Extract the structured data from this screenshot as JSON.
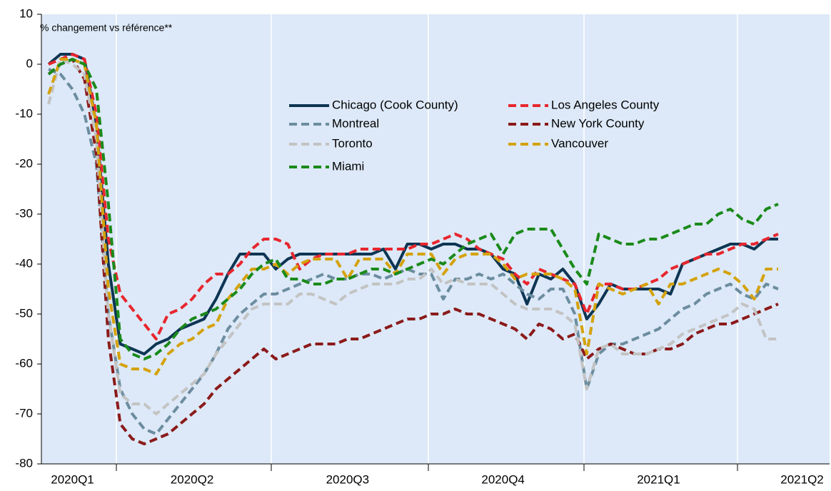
{
  "chart_data": {
    "type": "line",
    "ylabel": "% changement vs référence**",
    "categories": [
      null,
      null,
      "2020Q1",
      null,
      null,
      null,
      null,
      null,
      null,
      null,
      null,
      null,
      "2020Q2",
      null,
      null,
      null,
      null,
      null,
      null,
      null,
      null,
      null,
      null,
      null,
      null,
      "2020Q3",
      null,
      null,
      null,
      null,
      null,
      null,
      null,
      null,
      null,
      null,
      null,
      null,
      "2020Q4",
      null,
      null,
      null,
      null,
      null,
      null,
      null,
      null,
      null,
      null,
      null,
      null,
      "2021Q1",
      null,
      null,
      null,
      null,
      null,
      null,
      null,
      null,
      null,
      null,
      null,
      "2021Q2",
      null
    ],
    "series": [
      {
        "name": "Chicago (Cook County)",
        "color": "#0d3553",
        "dashed": false,
        "values": [
          0,
          2,
          2,
          1,
          -12,
          -40,
          -56,
          -57,
          -58,
          -56,
          -55,
          -53,
          -52,
          -51,
          -47,
          -42,
          -38,
          -38,
          -38,
          -41,
          -39,
          -38,
          -38,
          -38,
          -38,
          -38,
          -38,
          -38,
          -37,
          -41,
          -36,
          -36,
          -37,
          -36,
          -36,
          -37,
          -37,
          -38,
          -41,
          -42,
          -48,
          -42,
          -43,
          -41,
          -44,
          -51,
          -48,
          -44,
          -45,
          -45,
          -45,
          -45,
          -46,
          -40,
          -39,
          -38,
          -37,
          -36,
          -36,
          -37,
          -35,
          -35,
          null,
          null,
          null
        ]
      },
      {
        "name": "Los Angeles County",
        "color": "#e8262e",
        "dashed": true,
        "values": [
          0,
          1,
          2,
          1,
          -10,
          -35,
          -46,
          -49,
          -52,
          -55,
          -50,
          -49,
          -47,
          -44,
          -42,
          -42,
          -40,
          -37,
          -35,
          -35,
          -36,
          -41,
          -39,
          -38,
          -38,
          -38,
          -37,
          -37,
          -37,
          -37,
          -37,
          -36,
          -36,
          -35,
          -34,
          -35,
          -37,
          -38,
          -39,
          -42,
          -44,
          -41,
          -42,
          -43,
          -44,
          -50,
          -44,
          -44,
          -45,
          -45,
          -44,
          -43,
          -41,
          -40,
          -39,
          -38,
          -38,
          -37,
          -36,
          -36,
          -35,
          -34,
          null,
          null,
          null
        ]
      },
      {
        "name": "Montreal",
        "color": "#6c8d9f",
        "dashed": true,
        "values": [
          -1,
          -2,
          -5,
          -10,
          -20,
          -50,
          -65,
          -70,
          -73,
          -74,
          -71,
          -68,
          -65,
          -62,
          -58,
          -53,
          -50,
          -48,
          -46,
          -46,
          -45,
          -44,
          -43,
          -42,
          -43,
          -43,
          -42,
          -42,
          -43,
          -42,
          -41,
          -42,
          -42,
          -47,
          -43,
          -43,
          -42,
          -43,
          -42,
          -44,
          -46,
          -47,
          -45,
          -45,
          -50,
          -65,
          -58,
          -56,
          -56,
          -55,
          -54,
          -53,
          -51,
          -49,
          -48,
          -46,
          -45,
          -44,
          -46,
          -47,
          -44,
          -45,
          null,
          null,
          null
        ]
      },
      {
        "name": "New York County",
        "color": "#8b1a1a",
        "dashed": true,
        "values": [
          -2,
          0,
          1,
          -3,
          -18,
          -55,
          -72,
          -75,
          -76,
          -75,
          -74,
          -72,
          -70,
          -68,
          -65,
          -63,
          -61,
          -59,
          -57,
          -59,
          -58,
          -57,
          -56,
          -56,
          -56,
          -55,
          -55,
          -54,
          -53,
          -52,
          -51,
          -51,
          -50,
          -50,
          -49,
          -50,
          -50,
          -51,
          -52,
          -53,
          -55,
          -52,
          -53,
          -55,
          -54,
          -59,
          -57,
          -56,
          -57,
          -58,
          -58,
          -57,
          -57,
          -56,
          -54,
          -53,
          -52,
          -52,
          -51,
          -50,
          -49,
          -48,
          null,
          null,
          null
        ]
      },
      {
        "name": "Toronto",
        "color": "#c3c3c3",
        "dashed": true,
        "values": [
          -8,
          1,
          0,
          -2,
          -15,
          -50,
          -66,
          -68,
          -68,
          -70,
          -68,
          -66,
          -64,
          -62,
          -58,
          -55,
          -52,
          -49,
          -48,
          -48,
          -48,
          -46,
          -46,
          -47,
          -48,
          -46,
          -45,
          -44,
          -44,
          -44,
          -43,
          -43,
          -41,
          -44,
          -43,
          -44,
          -44,
          -44,
          -46,
          -48,
          -49,
          -49,
          -49,
          -50,
          -52,
          -65,
          -57,
          -56,
          -58,
          -58,
          -58,
          -57,
          -56,
          -54,
          -53,
          -52,
          -51,
          -50,
          -48,
          -49,
          -55,
          -55,
          null,
          null,
          null
        ]
      },
      {
        "name": "Vancouver",
        "color": "#d4a20c",
        "dashed": true,
        "values": [
          -6,
          1,
          1,
          0,
          -12,
          -45,
          -60,
          -61,
          -61,
          -62,
          -58,
          -56,
          -55,
          -53,
          -52,
          -47,
          -44,
          -41,
          -41,
          -40,
          -42,
          -40,
          -39,
          -39,
          -39,
          -43,
          -39,
          -39,
          -39,
          -42,
          -38,
          -38,
          -38,
          -42,
          -39,
          -38,
          -38,
          -38,
          -40,
          -43,
          -42,
          -42,
          -42,
          -43,
          -45,
          -58,
          -44,
          -45,
          -46,
          -45,
          -44,
          -48,
          -44,
          -44,
          -43,
          -42,
          -41,
          -42,
          -44,
          -47,
          -41,
          -41,
          null,
          null,
          null
        ]
      },
      {
        "name": "Miami",
        "color": "#1a8a1a",
        "dashed": true,
        "values": [
          -2,
          0,
          1,
          0,
          -5,
          -28,
          -55,
          -58,
          -59,
          -58,
          -56,
          -53,
          -51,
          -50,
          -49,
          -47,
          -45,
          -42,
          -40,
          -39,
          -43,
          -43,
          -44,
          -44,
          -43,
          -43,
          -42,
          -41,
          -41,
          -42,
          -41,
          -40,
          -39,
          -40,
          -38,
          -36,
          -35,
          -34,
          -38,
          -34,
          -33,
          -33,
          -33,
          -37,
          -41,
          -44,
          -34,
          -35,
          -36,
          -36,
          -35,
          -35,
          -34,
          -33,
          -32,
          -32,
          -30,
          -29,
          -31,
          -32,
          -29,
          -28,
          null,
          null,
          null
        ]
      }
    ],
    "ylim": [
      -80,
      10
    ],
    "yticks": [
      10,
      0,
      -10,
      -20,
      -30,
      -40,
      -50,
      -60,
      -70,
      -80
    ]
  }
}
